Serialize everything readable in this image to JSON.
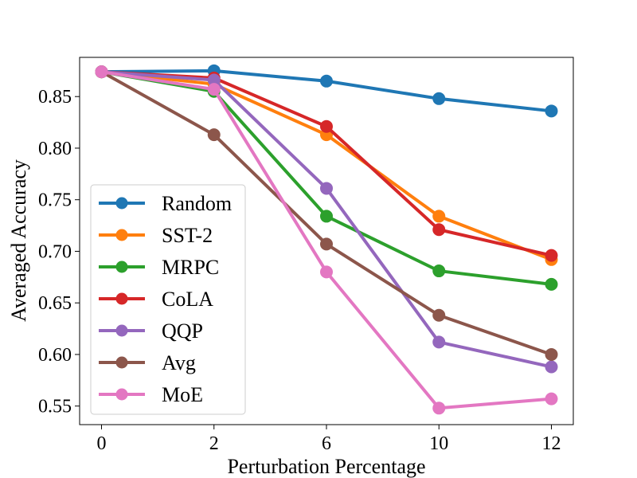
{
  "chart_data": {
    "type": "line",
    "xlabel": "Perturbation Percentage",
    "ylabel": "Averaged Accuracy",
    "categories": [
      "0",
      "2",
      "6",
      "10",
      "12"
    ],
    "ylim": [
      0.532,
      0.888
    ],
    "yticks": [
      0.55,
      0.6,
      0.65,
      0.7,
      0.75,
      0.8,
      0.85
    ],
    "ytick_labels": [
      "0.55",
      "0.60",
      "0.65",
      "0.70",
      "0.75",
      "0.80",
      "0.85"
    ],
    "grid": false,
    "legend_position": "lower-left",
    "series": [
      {
        "name": "Random",
        "color": "#1f77b4",
        "values": [
          0.874,
          0.875,
          0.865,
          0.848,
          0.836
        ]
      },
      {
        "name": "SST-2",
        "color": "#ff7f0e",
        "values": [
          0.874,
          0.862,
          0.813,
          0.734,
          0.692
        ]
      },
      {
        "name": "MRPC",
        "color": "#2ca02c",
        "values": [
          0.874,
          0.855,
          0.734,
          0.681,
          0.668
        ]
      },
      {
        "name": "CoLA",
        "color": "#d62728",
        "values": [
          0.874,
          0.868,
          0.821,
          0.721,
          0.696
        ]
      },
      {
        "name": "QQP",
        "color": "#9467bd",
        "values": [
          0.874,
          0.866,
          0.761,
          0.612,
          0.588
        ]
      },
      {
        "name": "Avg",
        "color": "#8c564b",
        "values": [
          0.874,
          0.813,
          0.707,
          0.638,
          0.6
        ]
      },
      {
        "name": "MoE",
        "color": "#e377c2",
        "values": [
          0.874,
          0.857,
          0.68,
          0.548,
          0.557
        ]
      }
    ]
  }
}
